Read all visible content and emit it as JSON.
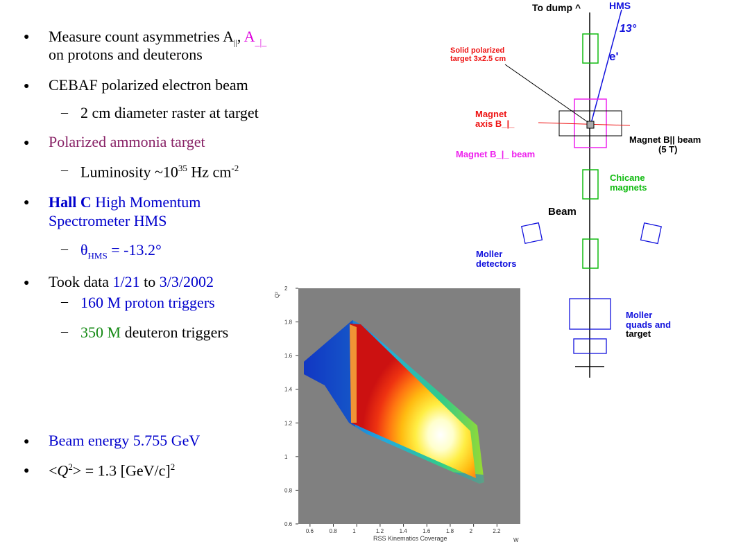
{
  "bullets": {
    "b1_line1_pre": "Measure count asymmetries A",
    "b1_sub_par": "||",
    "b1_comma": ", ",
    "b1_aperp": "A",
    "b1_sub_perp": "_|_",
    "b1_line2": "on protons and deuterons",
    "b2": "CEBAF polarized electron beam",
    "b2_sub": "2 cm diameter raster at target",
    "b3": "Polarized ammonia target",
    "b3_sub_pre": "Luminosity ~10",
    "b3_sub_sup": "35",
    "b3_sub_mid": " Hz cm",
    "b3_sub_sup2": "-2",
    "b4_bold": "Hall C",
    "b4_rest": " High Momentum",
    "b4_line2": "Spectrometer HMS",
    "b4_sub_theta": "θ",
    "b4_sub_hms": "HMS",
    "b4_sub_val": " = -13.2°",
    "b5_pre": "Took data ",
    "b5_d1": "1/21",
    "b5_mid": " to ",
    "b5_d2": "3/3/2002",
    "b5_sub1_num": "160 M",
    "b5_sub1_rest": " proton triggers",
    "b5_sub2_num": "350 M",
    "b5_sub2_rest": " deuteron triggers",
    "b6": "Beam energy 5.755 GeV",
    "b7_pre": "<",
    "b7_q": "Q",
    "b7_sup": "2",
    "b7_rest": "> = 1.3 [GeV/c]",
    "b7_sup2": "2"
  },
  "diagram": {
    "to_dump": "To dump ^",
    "hms": "HMS",
    "angle": "13°",
    "eprime": "e'",
    "target_l1": "Solid polarized",
    "target_l2": "target 3x2.5 cm",
    "magnet_axis_l1": "Magnet",
    "magnet_axis_l2": "axis B_|_",
    "magnet_perp_beam": "Magnet B_|_ beam",
    "magnet_par_l1": "Magnet B|| beam",
    "magnet_par_l2": "(5 T)",
    "chicane_l1": "Chicane",
    "chicane_l2": "magnets",
    "beam": "Beam",
    "moller_det_l1": "Moller",
    "moller_det_l2": "detectors",
    "moller_quads_l1": "Moller",
    "moller_quads_l2": "quads and",
    "moller_quads_l3": "target",
    "colors": {
      "red": "#ee1111",
      "blue": "#1111dd",
      "magenta": "#ee22ee",
      "green": "#11bb11"
    }
  },
  "chart_data": {
    "type": "heatmap",
    "title": "RSS Kinematics Coverage",
    "xlabel": "W",
    "ylabel": "Q²",
    "xlim": [
      0.5,
      2.4
    ],
    "ylim": [
      0.6,
      2.0
    ],
    "xticks": [
      "0.6",
      "0.8",
      "1",
      "1.2",
      "1.4",
      "1.6",
      "1.8",
      "2",
      "2.2"
    ],
    "yticks": [
      "0.6",
      "0.8",
      "1",
      "1.2",
      "1.4",
      "1.6",
      "1.8",
      "2"
    ]
  }
}
